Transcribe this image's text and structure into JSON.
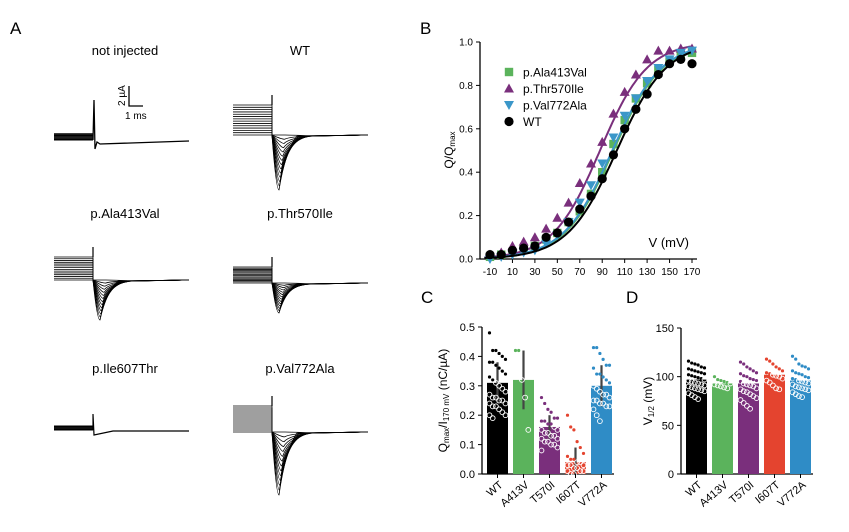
{
  "panel_labels": {
    "a": "A",
    "b": "B",
    "c": "C",
    "d": "D"
  },
  "colors": {
    "wt": "#000000",
    "a413v": "#5bb35c",
    "t570i": "#7a2f7c",
    "i607t": "#e4442f",
    "v772a": "#2f8cc6",
    "v772a_marker": "#3b97c9"
  },
  "panel_a": {
    "traces": [
      {
        "title": "not injected",
        "kind": "none"
      },
      {
        "title": "WT",
        "kind": "large"
      },
      {
        "title": "p.Ala413Val",
        "kind": "large"
      },
      {
        "title": "p.Thr570Ile",
        "kind": "medium"
      },
      {
        "title": "p.Ile607Thr",
        "kind": "tiny"
      },
      {
        "title": "p.Val772Ala",
        "kind": "large"
      }
    ],
    "scale_bar": {
      "y_label": "2 µA",
      "x_label": "1 ms"
    }
  },
  "chart_data": [
    {
      "panel": "B",
      "type": "scatter",
      "title": "",
      "xlabel": "V (mV)",
      "ylabel": "Q/Q",
      "ylabel_sub": "max",
      "xlim": [
        -15,
        175
      ],
      "ylim": [
        0,
        1.0
      ],
      "xticks": [
        -10,
        10,
        30,
        50,
        70,
        90,
        110,
        130,
        150,
        170
      ],
      "xtick_labels": [
        "-10",
        "10",
        "30",
        "50",
        "70",
        "90",
        "110",
        "130",
        "150",
        "170"
      ],
      "yticks": [
        0.0,
        0.2,
        0.4,
        0.6,
        0.8,
        1.0
      ],
      "ytick_labels": [
        "0.0",
        "0.2",
        "0.4",
        "0.6",
        "0.8",
        "1.0"
      ],
      "legend_position": "top-left",
      "x": [
        -10,
        0,
        10,
        20,
        30,
        40,
        50,
        60,
        70,
        80,
        90,
        100,
        110,
        120,
        130,
        140,
        150,
        160,
        170
      ],
      "series": [
        {
          "name": "p.Ala413Val",
          "marker": "square",
          "color_key": "a413v",
          "values": [
            0.01,
            0.02,
            0.03,
            0.05,
            0.06,
            0.09,
            0.12,
            0.17,
            0.22,
            0.3,
            0.4,
            0.53,
            0.64,
            0.74,
            0.81,
            0.87,
            0.91,
            0.94,
            0.95
          ],
          "fit": {
            "v_half": 100,
            "slope": 22
          }
        },
        {
          "name": "p.Thr570Ile",
          "marker": "triangle-up",
          "color_key": "t570i",
          "values": [
            0.02,
            0.03,
            0.06,
            0.08,
            0.1,
            0.14,
            0.19,
            0.26,
            0.35,
            0.44,
            0.54,
            0.67,
            0.77,
            0.85,
            0.92,
            0.96,
            0.96,
            0.97,
            0.97
          ],
          "fit": {
            "v_half": 88,
            "slope": 21
          }
        },
        {
          "name": "p.Val772Ala",
          "marker": "triangle-down",
          "color_key": "v772a_marker",
          "values": [
            0.0,
            0.01,
            0.02,
            0.03,
            0.04,
            0.07,
            0.11,
            0.17,
            0.26,
            0.34,
            0.44,
            0.56,
            0.66,
            0.74,
            0.82,
            0.88,
            0.92,
            0.95,
            0.96
          ],
          "fit": {
            "v_half": 99,
            "slope": 22
          }
        },
        {
          "name": "WT",
          "marker": "circle",
          "color_key": "wt",
          "values": [
            0.02,
            0.02,
            0.04,
            0.05,
            0.06,
            0.1,
            0.12,
            0.17,
            0.23,
            0.29,
            0.37,
            0.48,
            0.6,
            0.69,
            0.76,
            0.85,
            0.9,
            0.92,
            0.9
          ],
          "fit": {
            "v_half": 103,
            "slope": 22
          }
        }
      ]
    },
    {
      "panel": "C",
      "type": "bar",
      "title": "",
      "xlabel": "",
      "ylabel": "Q",
      "ylabel_parts": [
        "Q",
        "max",
        "/I",
        "170 mV",
        " (nC/µA)"
      ],
      "ylim": [
        0,
        0.5
      ],
      "yticks": [
        0.0,
        0.1,
        0.2,
        0.3,
        0.4,
        0.5
      ],
      "ytick_labels": [
        "0.0",
        "0.1",
        "0.2",
        "0.3",
        "0.4",
        "0.5"
      ],
      "categories": [
        "WT",
        "A413V",
        "T570I",
        "I607T",
        "V772A"
      ],
      "color_keys": [
        "wt",
        "a413v",
        "t570i",
        "i607t",
        "v772a"
      ],
      "values": [
        0.31,
        0.32,
        0.16,
        0.04,
        0.3
      ],
      "sd": [
        0.07,
        0.1,
        0.04,
        0.05,
        0.07
      ],
      "points": [
        [
          0.48,
          0.42,
          0.42,
          0.41,
          0.4,
          0.39,
          0.38,
          0.38,
          0.37,
          0.36,
          0.35,
          0.34,
          0.33,
          0.32,
          0.31,
          0.3,
          0.29,
          0.28,
          0.27,
          0.26,
          0.26,
          0.25,
          0.25,
          0.24,
          0.24,
          0.23,
          0.23,
          0.22,
          0.21,
          0.2,
          0.2,
          0.19
        ],
        [
          0.42,
          0.42,
          0.32,
          0.26,
          0.15
        ],
        [
          0.26,
          0.24,
          0.22,
          0.21,
          0.19,
          0.19,
          0.18,
          0.18,
          0.17,
          0.17,
          0.16,
          0.15,
          0.15,
          0.14,
          0.14,
          0.13,
          0.13,
          0.12,
          0.12,
          0.11,
          0.11,
          0.1,
          0.1,
          0.09,
          0.08
        ],
        [
          0.2,
          0.16,
          0.15,
          0.11,
          0.09,
          0.07,
          0.06,
          0.05,
          0.05,
          0.04,
          0.04,
          0.03,
          0.03,
          0.03,
          0.02,
          0.02,
          0.01,
          0.01,
          0.01,
          0.0,
          0.0
        ],
        [
          0.43,
          0.43,
          0.41,
          0.39,
          0.37,
          0.37,
          0.36,
          0.34,
          0.34,
          0.33,
          0.32,
          0.31,
          0.3,
          0.29,
          0.28,
          0.27,
          0.27,
          0.26,
          0.25,
          0.25,
          0.24,
          0.24,
          0.23,
          0.23,
          0.22,
          0.2,
          0.18
        ]
      ]
    },
    {
      "panel": "D",
      "type": "bar",
      "title": "",
      "xlabel": "",
      "ylabel": "V",
      "ylabel_parts": [
        "V",
        "1/2",
        " (mV)"
      ],
      "ylim": [
        0,
        150
      ],
      "yticks": [
        0,
        50,
        100,
        150
      ],
      "ytick_labels": [
        "0",
        "50",
        "100",
        "150"
      ],
      "categories": [
        "WT",
        "A413V",
        "T570I",
        "I607T",
        "V772A"
      ],
      "color_keys": [
        "wt",
        "a413v",
        "t570i",
        "i607t",
        "v772a"
      ],
      "values": [
        97,
        93,
        93,
        102,
        96
      ],
      "points": [
        [
          116,
          114,
          113,
          112,
          110,
          109,
          108,
          107,
          106,
          105,
          104,
          103,
          102,
          101,
          100,
          99,
          98,
          97,
          96,
          95,
          94,
          93,
          92,
          91,
          90,
          89,
          88,
          87,
          86,
          85,
          83,
          81,
          79,
          77
        ],
        [
          100,
          97,
          96,
          95,
          94,
          93,
          92,
          91,
          90,
          89,
          88
        ],
        [
          115,
          113,
          110,
          108,
          106,
          104,
          103,
          101,
          100,
          98,
          97,
          96,
          95,
          93,
          92,
          91,
          90,
          88,
          87,
          85,
          84,
          82,
          80,
          78,
          76,
          73,
          70,
          67
        ],
        [
          118,
          116,
          113,
          110,
          108,
          106,
          104,
          103,
          102,
          101,
          100,
          98,
          96,
          94,
          91,
          88,
          87
        ],
        [
          121,
          118,
          113,
          111,
          110,
          108,
          106,
          104,
          103,
          102,
          100,
          99,
          98,
          97,
          96,
          95,
          94,
          93,
          92,
          90,
          89,
          88,
          87,
          86,
          84,
          82,
          80,
          79
        ]
      ]
    }
  ]
}
